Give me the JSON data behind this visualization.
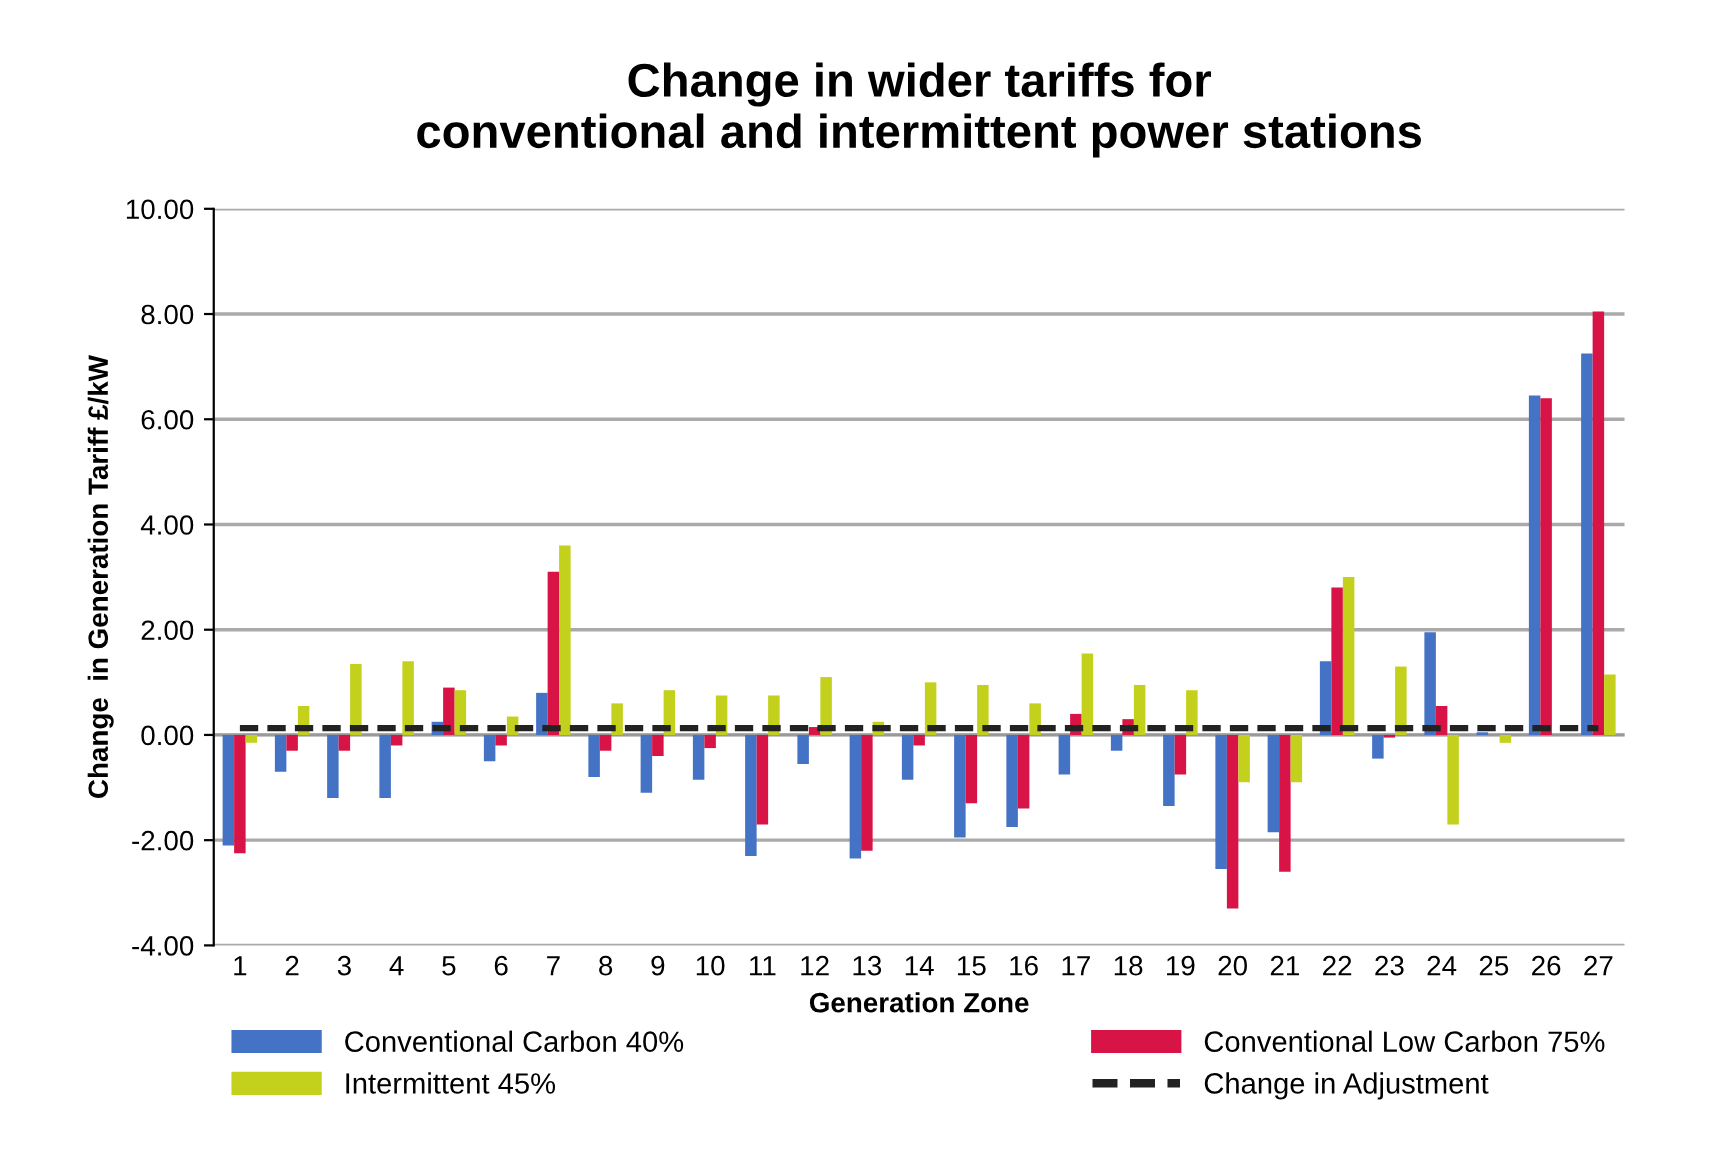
{
  "chart_data": {
    "type": "bar",
    "title": "Change in wider tariffs for\nconventional and intermittent power stations",
    "xlabel": "Generation Zone",
    "ylabel": "Change  in Generation Tariff £/kW",
    "categories": [
      "1",
      "2",
      "3",
      "4",
      "5",
      "6",
      "7",
      "8",
      "9",
      "10",
      "11",
      "12",
      "13",
      "14",
      "15",
      "16",
      "17",
      "18",
      "19",
      "20",
      "21",
      "22",
      "23",
      "24",
      "25",
      "26",
      "27"
    ],
    "series": [
      {
        "name": "Conventional Carbon 40%",
        "color": "#4472c4",
        "values": [
          -2.1,
          -0.7,
          -1.2,
          -1.2,
          0.25,
          -0.5,
          0.8,
          -0.8,
          -1.1,
          -0.85,
          -2.3,
          -0.55,
          -2.35,
          -0.85,
          -1.95,
          -1.75,
          -0.75,
          -0.3,
          -1.35,
          -2.55,
          -1.85,
          1.4,
          -0.45,
          1.95,
          0.05,
          6.45,
          7.25
        ]
      },
      {
        "name": "Conventional Low Carbon 75%",
        "color": "#d81345",
        "values": [
          -2.25,
          -0.3,
          -0.3,
          -0.2,
          0.9,
          -0.2,
          3.1,
          -0.3,
          -0.4,
          -0.25,
          -1.7,
          0.15,
          -2.2,
          -0.2,
          -1.3,
          -1.4,
          0.4,
          0.3,
          -0.75,
          -3.3,
          -2.6,
          2.8,
          -0.05,
          0.55,
          0,
          6.4,
          8.05
        ]
      },
      {
        "name": "Intermittent 45%",
        "color": "#c3d01c",
        "values": [
          -0.15,
          0.55,
          1.35,
          1.4,
          0.85,
          0.35,
          3.6,
          0.6,
          0.85,
          0.75,
          0.75,
          1.1,
          0.25,
          1.0,
          0.95,
          0.6,
          1.55,
          0.95,
          0.85,
          -0.9,
          -0.9,
          3.0,
          1.3,
          -1.7,
          -0.15,
          0,
          1.15
        ]
      },
      {
        "name": "Change in Adjustment",
        "type": "line",
        "color": "#222222",
        "line_style": "dashed",
        "values": [
          0.13,
          0.13,
          0.13,
          0.13,
          0.13,
          0.13,
          0.13,
          0.13,
          0.13,
          0.13,
          0.13,
          0.13,
          0.13,
          0.13,
          0.13,
          0.13,
          0.13,
          0.13,
          0.13,
          0.13,
          0.13,
          0.13,
          0.13,
          0.13,
          0.13,
          0.13,
          0.13
        ]
      }
    ],
    "ylim": [
      -4,
      10
    ],
    "yticks": [
      {
        "value": -4,
        "label": "-4.00"
      },
      {
        "value": -2,
        "label": "-2.00"
      },
      {
        "value": 0,
        "label": "0.00"
      },
      {
        "value": 2,
        "label": "2.00"
      },
      {
        "value": 4,
        "label": "4.00"
      },
      {
        "value": 6,
        "label": "6.00"
      },
      {
        "value": 8,
        "label": "8.00"
      },
      {
        "value": 10,
        "label": "10.00"
      }
    ],
    "grid": "y",
    "legend": "bottom"
  }
}
